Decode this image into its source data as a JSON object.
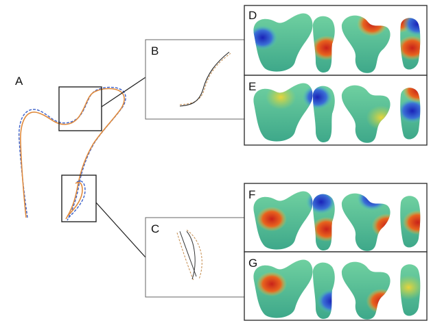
{
  "panels": {
    "A": "A",
    "B": "B",
    "C": "C",
    "D": "D",
    "E": "E",
    "F": "F",
    "G": "G"
  },
  "colors": {
    "contour_solid": "#e08a3c",
    "contour_dashed": "#3a5fc8",
    "frame": "#333333",
    "map_low": "#2233cc",
    "map_mid": "#3fb98a",
    "map_high": "#d8261c"
  }
}
